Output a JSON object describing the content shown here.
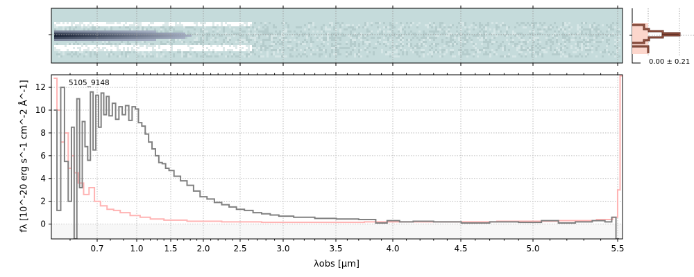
{
  "chart_data": [
    {
      "type": "heatmap",
      "description_label": "2D spectrum",
      "colormap_colors": [
        "#c5dbdb",
        "#1c2440",
        "#ffffff"
      ]
    },
    {
      "type": "line",
      "label": "5105_9148",
      "xlabel": "λobs [μm]",
      "ylabel": "fλ [10^-20 erg s^-1 cm^-2 Å^-1]",
      "xlim": [
        0.55,
        5.53
      ],
      "ylim": [
        -1.3,
        13.1
      ],
      "xticks": [
        "0.7",
        "1.0",
        "1.5",
        "2.0",
        "2.5",
        "3.0",
        "3.5",
        "4.0",
        "4.5",
        "5.0",
        "5.5"
      ],
      "yticks": [
        "0",
        "2",
        "4",
        "6",
        "8",
        "10",
        "12"
      ],
      "grid": true,
      "series": [
        {
          "role": "flux",
          "color": "#808080",
          "x": [
            0.56,
            0.57,
            0.58,
            0.59,
            0.6,
            0.61,
            0.62,
            0.63,
            0.64,
            0.65,
            0.66,
            0.67,
            0.68,
            0.69,
            0.7,
            0.72,
            0.74,
            0.76,
            0.78,
            0.8,
            0.83,
            0.85,
            0.88,
            0.9,
            0.93,
            0.95,
            0.98,
            1.0,
            1.05,
            1.1,
            1.15,
            1.2,
            1.25,
            1.3,
            1.35,
            1.4,
            1.45,
            1.5,
            1.6,
            1.7,
            1.8,
            1.9,
            2.0,
            2.1,
            2.2,
            2.3,
            2.4,
            2.5,
            2.6,
            2.7,
            2.8,
            2.9,
            3.0,
            3.2,
            3.4,
            3.6,
            3.8,
            3.9,
            4.0,
            4.1,
            4.2,
            4.4,
            4.6,
            4.8,
            5.0,
            5.1,
            5.2,
            5.3,
            5.4,
            5.45,
            5.48,
            5.5
          ],
          "y": [
            10,
            1.2,
            12,
            5.5,
            2,
            8.5,
            -1.3,
            11,
            3.2,
            9,
            6.8,
            5.6,
            11.6,
            6.5,
            11.3,
            8.5,
            11.5,
            9.6,
            11.2,
            9.5,
            10.6,
            9.2,
            10.3,
            9.6,
            10.4,
            9.1,
            10.3,
            10.1,
            8.9,
            8.6,
            7.9,
            7.2,
            6.6,
            6.0,
            5.4,
            5.3,
            4.9,
            4.7,
            4.2,
            3.8,
            3.4,
            2.9,
            2.4,
            2.2,
            1.9,
            1.7,
            1.5,
            1.3,
            1.2,
            1.0,
            0.9,
            0.8,
            0.7,
            0.6,
            0.5,
            0.45,
            0.4,
            0.1,
            0.3,
            0.2,
            0.25,
            0.2,
            0.1,
            0.2,
            0.15,
            0.3,
            0.1,
            0.2,
            0.3,
            0.2,
            0.6,
            -1.3
          ]
        },
        {
          "role": "error",
          "color": "#ffb3b3",
          "x": [
            0.56,
            0.57,
            0.58,
            0.59,
            0.6,
            0.61,
            0.62,
            0.64,
            0.66,
            0.68,
            0.7,
            0.75,
            0.8,
            0.85,
            0.9,
            1.0,
            1.1,
            1.3,
            1.5,
            2.0,
            2.5,
            3.0,
            3.5,
            4.0,
            4.5,
            5.0,
            5.3,
            5.45,
            5.49,
            5.51,
            5.52
          ],
          "y": [
            12.8,
            10,
            7.2,
            8,
            4.9,
            6,
            4.5,
            3.6,
            2.6,
            3.2,
            2,
            1.6,
            1.3,
            1.2,
            1.0,
            0.75,
            0.6,
            0.45,
            0.35,
            0.25,
            0.2,
            0.15,
            0.15,
            0.2,
            0.2,
            0.25,
            0.3,
            0.4,
            0.6,
            3,
            13
          ]
        }
      ]
    },
    {
      "type": "histogram",
      "annotation": "0.00 ± 0.21"
    }
  ]
}
